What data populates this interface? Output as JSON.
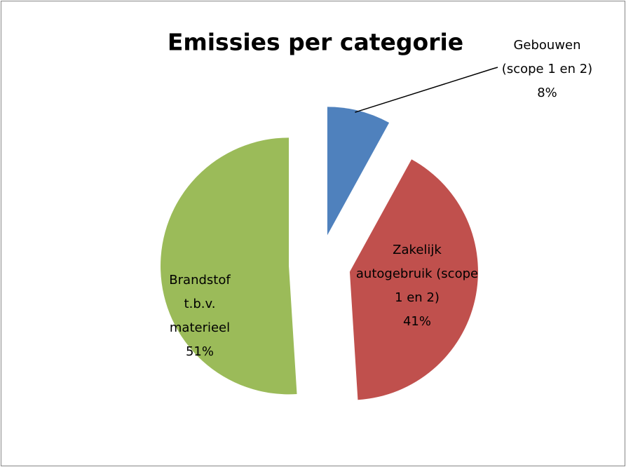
{
  "chart_data": {
    "type": "pie",
    "title": "Emissies per categorie",
    "categories": [
      "Gebouwen (scope 1 en 2)",
      "Zakelijk autogebruik (scope 1 en 2)",
      "Brandstof t.b.v. materieel"
    ],
    "values": [
      8,
      41,
      51
    ],
    "value_labels": [
      "8%",
      "41%",
      "51%"
    ],
    "colors": [
      "#4f81bd",
      "#c0504d",
      "#9bbb59"
    ],
    "exploded": true
  }
}
